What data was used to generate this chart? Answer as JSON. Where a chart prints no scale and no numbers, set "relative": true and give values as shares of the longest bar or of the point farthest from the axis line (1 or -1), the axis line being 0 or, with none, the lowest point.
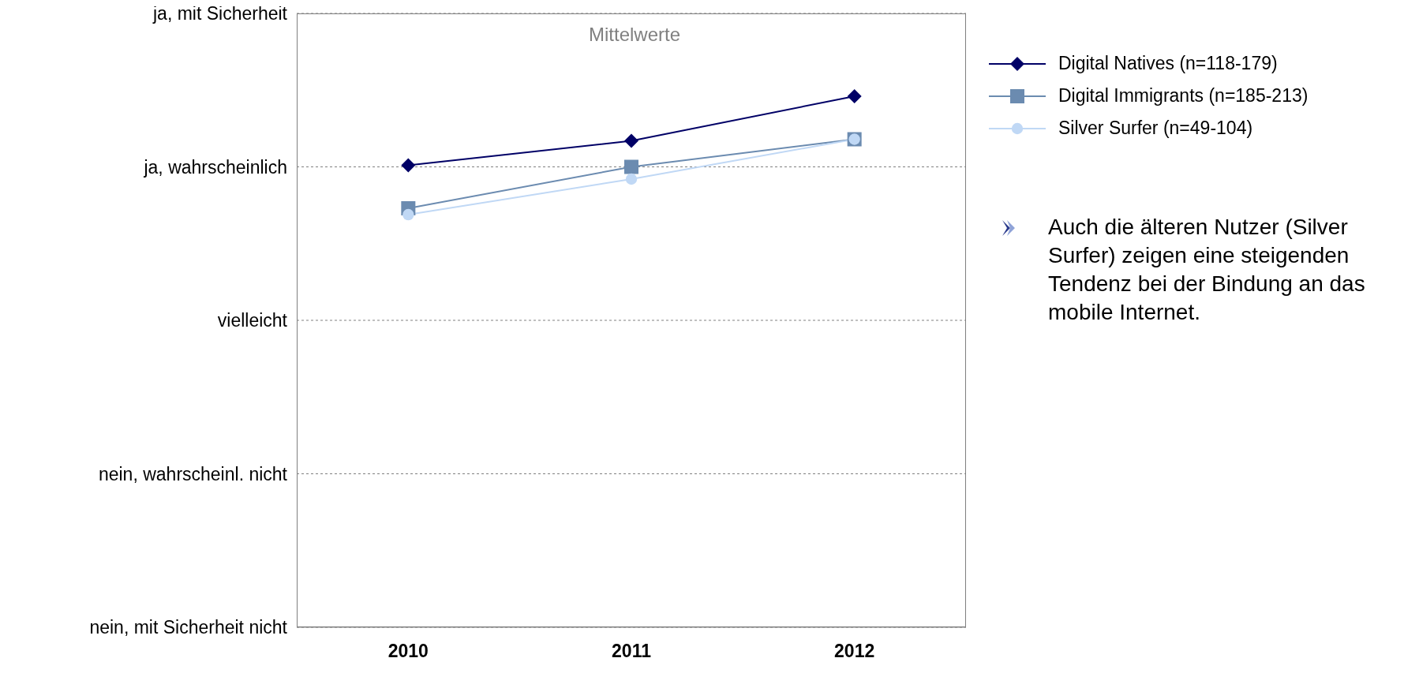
{
  "chart_data": {
    "type": "line",
    "subtitle": "Mittelwerte",
    "relative": true,
    "categories": [
      "2010",
      "2011",
      "2012"
    ],
    "series": [
      {
        "name": "Digital Natives (n=118-179)",
        "color": "#000066",
        "marker": "diamond",
        "values": [
          0.87,
          0.916,
          1
        ]
      },
      {
        "name": "Digital Immigrants (n=185-213)",
        "color": "#6b8bb0",
        "marker": "square",
        "values": [
          0.789,
          0.867,
          0.919
        ]
      },
      {
        "name": "Silver Surfer (n=49-104)",
        "color": "#c0d8f5",
        "marker": "circle",
        "values": [
          0.777,
          0.844,
          0.919
        ]
      }
    ],
    "ref_lines": [
      {
        "axis": "y",
        "value": 1.156,
        "label": "ja, mit Sicherheit",
        "color": "#808080",
        "line_style": "dotted"
      },
      {
        "axis": "y",
        "value": 0.867,
        "label": "ja, wahrscheinlich",
        "color": "#808080",
        "line_style": "dotted"
      },
      {
        "axis": "y",
        "value": 0.578,
        "label": "vielleicht",
        "color": "#808080",
        "line_style": "dotted"
      },
      {
        "axis": "y",
        "value": 0.289,
        "label": "nein, wahrscheinl. nicht",
        "color": "#808080",
        "line_style": "dotted"
      },
      {
        "axis": "y",
        "value": 0,
        "label": "nein, mit Sicherheit nicht",
        "color": "#808080",
        "line_style": "dotted"
      }
    ],
    "legend": "top right",
    "line_style": "solid",
    "annotations": [
      "Auch die älteren Nutzer (Silver Surfer) zeigen eine steigenden Tendenz bei der Bindung an das mobile Internet."
    ]
  }
}
